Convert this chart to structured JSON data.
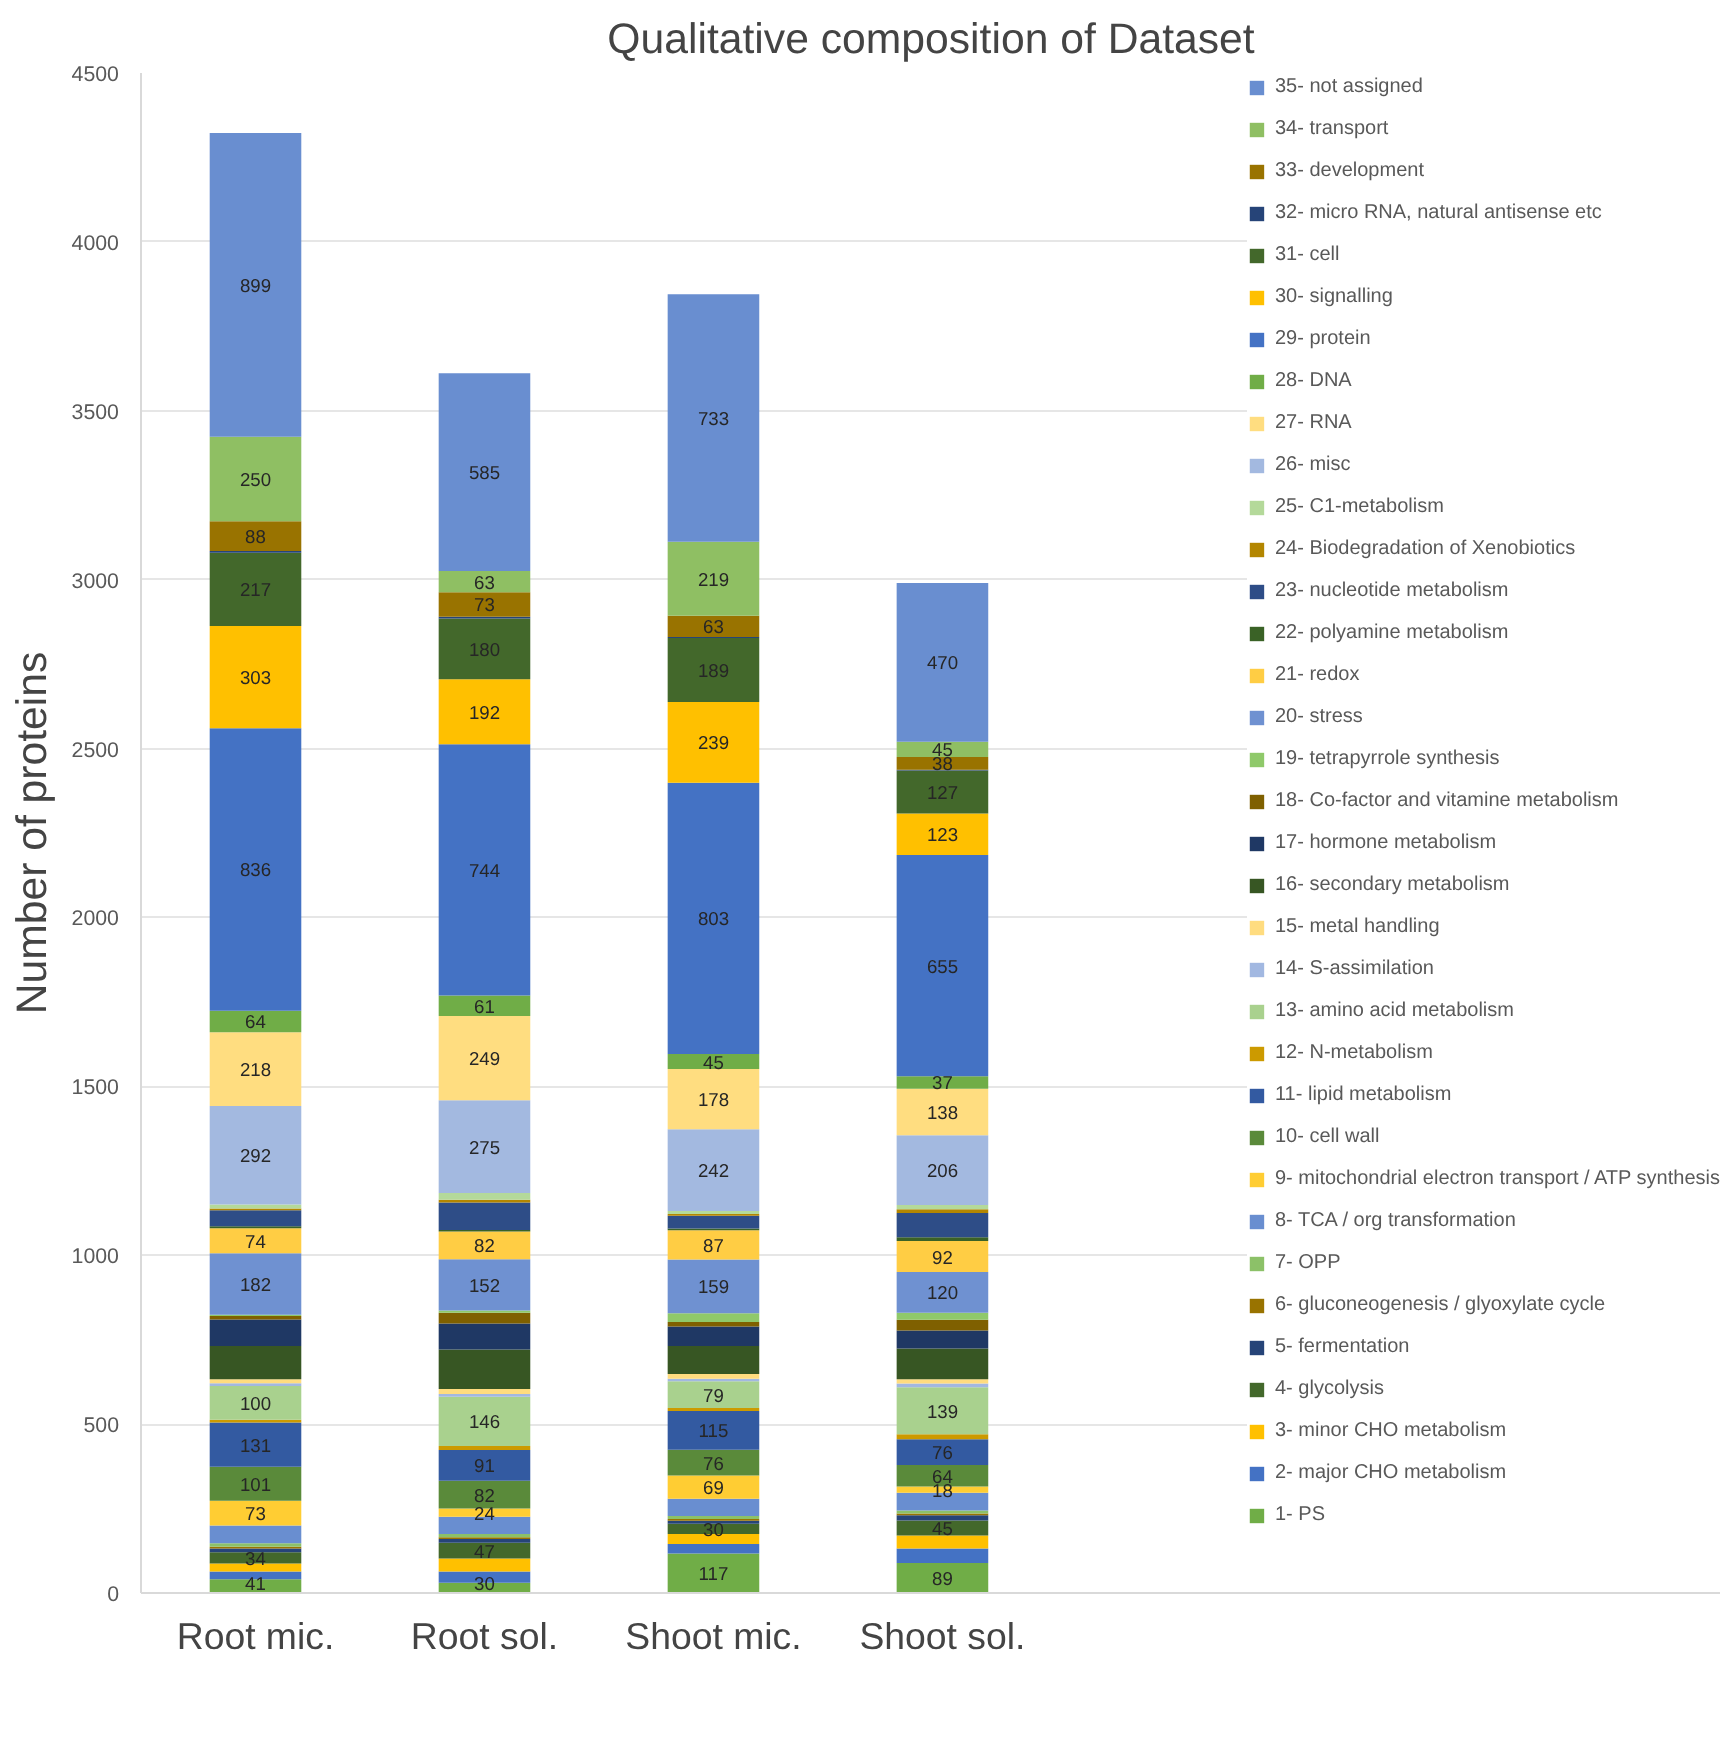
{
  "chart_data": {
    "type": "bar",
    "stacked": true,
    "title": "Qualitative composition of Dataset",
    "ylabel": "Number of proteins",
    "categories": [
      "Root mic.",
      "Root sol.",
      "Shoot mic.",
      "Shoot sol."
    ],
    "ylim": [
      0,
      4500
    ],
    "yticks": [
      0,
      500,
      1000,
      1500,
      2000,
      2500,
      3000,
      3500,
      4000,
      4500
    ],
    "grid": "y",
    "legend": "right",
    "series": [
      {
        "name": "1- PS",
        "color": "#70ad47",
        "values": [
          41,
          30,
          117,
          89
        ],
        "value_labels": [
          "41",
          "30",
          "117",
          "89"
        ]
      },
      {
        "name": "2- major CHO metabolism",
        "color": "#4472c4",
        "values": [
          23,
          34,
          28,
          43
        ]
      },
      {
        "name": "3- minor CHO metabolism",
        "color": "#ffc000",
        "values": [
          23,
          38,
          30,
          38
        ]
      },
      {
        "name": "4- glycolysis",
        "color": "#43682b",
        "values": [
          34,
          47,
          30,
          45
        ],
        "value_labels": [
          "34",
          "47",
          "30",
          "45"
        ]
      },
      {
        "name": "5- fermentation",
        "color": "#264478",
        "values": [
          11,
          11,
          9,
          15
        ]
      },
      {
        "name": "6- gluconeogenesis / glyoxylate cycle",
        "color": "#997300",
        "values": [
          5,
          5,
          5,
          5
        ]
      },
      {
        "name": "7- OPP",
        "color": "#8cc168",
        "values": [
          10,
          10,
          9,
          9
        ]
      },
      {
        "name": "8- TCA / org transformation",
        "color": "#698ed0",
        "values": [
          53,
          51,
          51,
          53
        ]
      },
      {
        "name": "9- mitochondrial electron transport / ATP synthesis",
        "color": "#ffcd33",
        "values": [
          73,
          24,
          69,
          18
        ],
        "value_labels": [
          "73",
          "24",
          "69",
          "18"
        ]
      },
      {
        "name": "10- cell wall",
        "color": "#5a8a3a",
        "values": [
          101,
          82,
          76,
          64
        ],
        "value_labels": [
          "101",
          "82",
          "76",
          "64"
        ]
      },
      {
        "name": "11- lipid metabolism",
        "color": "#335aa1",
        "values": [
          131,
          91,
          115,
          76
        ],
        "value_labels": [
          "131",
          "91",
          "115",
          "76"
        ]
      },
      {
        "name": "12- N-metabolism",
        "color": "#cc9a00",
        "values": [
          8,
          12,
          9,
          15
        ]
      },
      {
        "name": "13- amino acid metabolism",
        "color": "#a9d18e",
        "values": [
          100,
          146,
          79,
          139
        ],
        "value_labels": [
          "100",
          "146",
          "79",
          "139"
        ]
      },
      {
        "name": "14- S-assimilation",
        "color": "#a2b8e1",
        "values": [
          8,
          8,
          7,
          11
        ]
      },
      {
        "name": "15- metal handling",
        "color": "#ffdc7f",
        "values": [
          12,
          15,
          14,
          13
        ]
      },
      {
        "name": "16- secondary metabolism",
        "color": "#375623",
        "values": [
          98,
          117,
          83,
          91
        ]
      },
      {
        "name": "17- hormone metabolism",
        "color": "#1f3864",
        "values": [
          79,
          77,
          58,
          53
        ]
      },
      {
        "name": "18- Co-factor and vitamine metabolism",
        "color": "#7f6000",
        "values": [
          10,
          32,
          13,
          32
        ]
      },
      {
        "name": "19- tetrapyrrole synthesis",
        "color": "#8fc96a",
        "values": [
          4,
          6,
          26,
          21
        ]
      },
      {
        "name": "20- stress",
        "color": "#6f91d1",
        "values": [
          182,
          152,
          159,
          120
        ],
        "value_labels": [
          "182",
          "152",
          "159",
          "120"
        ]
      },
      {
        "name": "21- redox",
        "color": "#ffcd44",
        "values": [
          74,
          82,
          87,
          92
        ],
        "value_labels": [
          "74",
          "82",
          "87",
          "92"
        ]
      },
      {
        "name": "22- polyamine metabolism",
        "color": "#3a6226",
        "values": [
          6,
          5,
          5,
          11
        ]
      },
      {
        "name": "23- nucleotide metabolism",
        "color": "#2e4d87",
        "values": [
          47,
          81,
          38,
          72
        ]
      },
      {
        "name": "24- Biodegradation of Xenobiotics",
        "color": "#b38600",
        "values": [
          5,
          8,
          5,
          11
        ]
      },
      {
        "name": "25- C1-metabolism",
        "color": "#b4d99a",
        "values": [
          12,
          20,
          9,
          13
        ]
      },
      {
        "name": "26- misc",
        "color": "#a3b9e0",
        "values": [
          292,
          275,
          242,
          206
        ],
        "value_labels": [
          "292",
          "275",
          "242",
          "206"
        ]
      },
      {
        "name": "27- RNA",
        "color": "#ffdd80",
        "values": [
          218,
          249,
          178,
          138
        ],
        "value_labels": [
          "218",
          "249",
          "178",
          "138"
        ]
      },
      {
        "name": "28- DNA",
        "color": "#70ad47",
        "values": [
          64,
          61,
          45,
          37
        ],
        "value_labels": [
          "64",
          "61",
          "45",
          "37"
        ]
      },
      {
        "name": "29- protein",
        "color": "#4472c4",
        "values": [
          836,
          744,
          803,
          655
        ],
        "value_labels": [
          "836",
          "744",
          "803",
          "655"
        ]
      },
      {
        "name": "30- signalling",
        "color": "#ffc000",
        "values": [
          303,
          192,
          239,
          123
        ],
        "value_labels": [
          "303",
          "192",
          "239",
          "123"
        ]
      },
      {
        "name": "31- cell",
        "color": "#43682b",
        "values": [
          217,
          180,
          189,
          127
        ],
        "value_labels": [
          "217",
          "180",
          "189",
          "127"
        ]
      },
      {
        "name": "32- micro RNA, natural antisense etc",
        "color": "#264478",
        "values": [
          5,
          5,
          3,
          2
        ]
      },
      {
        "name": "33- development",
        "color": "#997300",
        "values": [
          88,
          73,
          63,
          38
        ],
        "value_labels": [
          "88",
          "73",
          "63",
          "38"
        ]
      },
      {
        "name": "34- transport",
        "color": "#8fbf63",
        "values": [
          250,
          63,
          219,
          45
        ],
        "value_labels": [
          "250",
          "63",
          "219",
          "45"
        ]
      },
      {
        "name": "35- not assigned",
        "color": "#698ed0",
        "values": [
          899,
          585,
          733,
          470
        ],
        "value_labels": [
          "899",
          "585",
          "733",
          "470"
        ]
      }
    ]
  }
}
